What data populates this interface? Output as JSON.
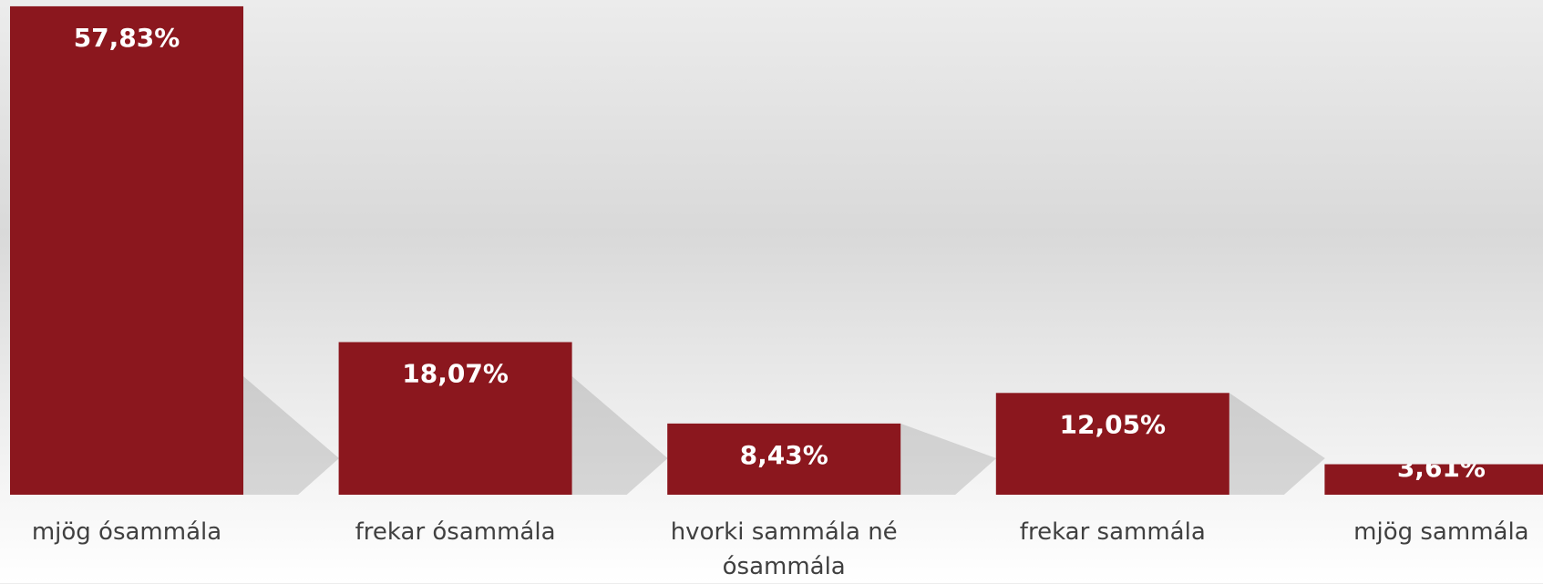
{
  "chart_data": {
    "type": "bar",
    "categories": [
      "mjög ósammála",
      "frekar ósammála",
      "hvorki sammála né ósammála",
      "frekar sammála",
      "mjög sammála"
    ],
    "values": [
      57.83,
      18.07,
      8.43,
      12.05,
      3.61
    ],
    "value_labels": [
      "57,83%",
      "18,07%",
      "8,43%",
      "12,05%",
      "3,61%"
    ],
    "color": "#8b171e"
  }
}
